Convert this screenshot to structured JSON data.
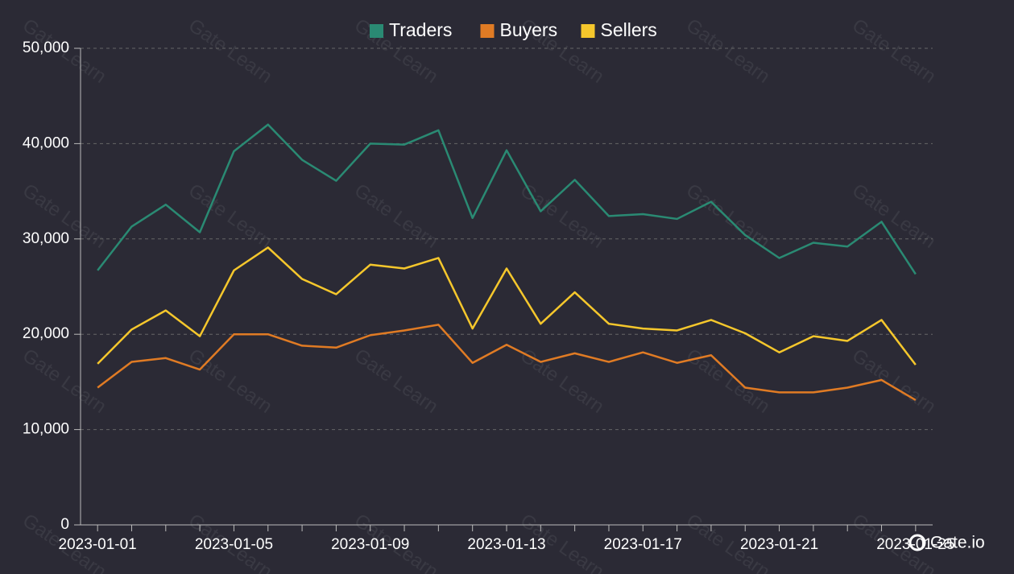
{
  "chart_data": {
    "type": "line",
    "categories": [
      "2023-01-01",
      null,
      null,
      null,
      "2023-01-05",
      null,
      null,
      null,
      "2023-01-09",
      null,
      null,
      null,
      "2023-01-13",
      null,
      null,
      null,
      "2023-01-17",
      null,
      null,
      null,
      "2023-01-21",
      null,
      null,
      null,
      "2023-01-25"
    ],
    "series": [
      {
        "name": "Traders",
        "color": "#2a8a73",
        "values": [
          26700,
          31300,
          33600,
          30700,
          39200,
          42000,
          38300,
          36100,
          40000,
          39900,
          41400,
          32200,
          39300,
          32900,
          36200,
          32400,
          32600,
          32100,
          33900,
          30400,
          28000,
          29600,
          29200,
          31800,
          26300
        ]
      },
      {
        "name": "Buyers",
        "color": "#e07b24",
        "values": [
          14400,
          17100,
          17500,
          16300,
          20000,
          20000,
          18800,
          18600,
          19900,
          20400,
          21000,
          17000,
          18900,
          17100,
          18000,
          17100,
          18100,
          17000,
          17800,
          14400,
          13900,
          13900,
          14400,
          15200,
          13100
        ]
      },
      {
        "name": "Sellers",
        "color": "#f5c72c",
        "values": [
          16900,
          20500,
          22500,
          19800,
          26700,
          29100,
          25800,
          24200,
          27300,
          26900,
          28000,
          20600,
          26900,
          21100,
          24400,
          21100,
          20600,
          20400,
          21500,
          20100,
          18100,
          19800,
          19300,
          21500,
          16800
        ]
      }
    ],
    "ylim": [
      0,
      50000
    ],
    "yticks": [
      0,
      {
        "value": 10000,
        "label": "10,000"
      },
      {
        "value": 20000,
        "label": "20,000"
      },
      {
        "value": 30000,
        "label": "30,000"
      },
      {
        "value": 40000,
        "label": "40,000"
      },
      {
        "value": 50000,
        "label": "50,000"
      }
    ],
    "grid": true,
    "legend": "top",
    "watermark": "Gate Learn",
    "logo": "Gate.io"
  }
}
